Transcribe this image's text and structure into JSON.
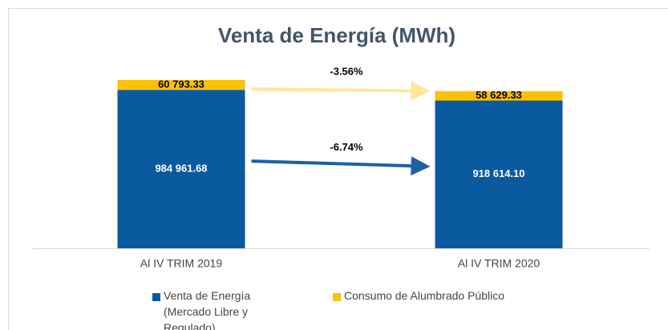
{
  "chart_data": {
    "type": "stacked_bar",
    "title": "Venta de Energía (MWh)",
    "categories": [
      "Al IV TRIM 2019",
      "Al IV TRIM 2020"
    ],
    "series": [
      {
        "name": "Venta de Energía (Mercado Libre y Regulado)",
        "color": "#0a5aa0",
        "label_color": "#ffffff",
        "values": [
          984961.68,
          918614.1
        ],
        "value_labels": [
          "984 961.68",
          "918 614.10"
        ]
      },
      {
        "name": "Consumo de Alumbrado Público",
        "color": "#ffc000",
        "label_color": "#000000",
        "values": [
          60793.33,
          58629.33
        ],
        "value_labels": [
          "60 793.33",
          "58 629.33"
        ]
      }
    ],
    "annotations": [
      {
        "text": "-3.56%",
        "color": "#ffe699"
      },
      {
        "text": "-6.74%",
        "color": "#1f5fa6"
      }
    ],
    "legend": "bottom"
  }
}
